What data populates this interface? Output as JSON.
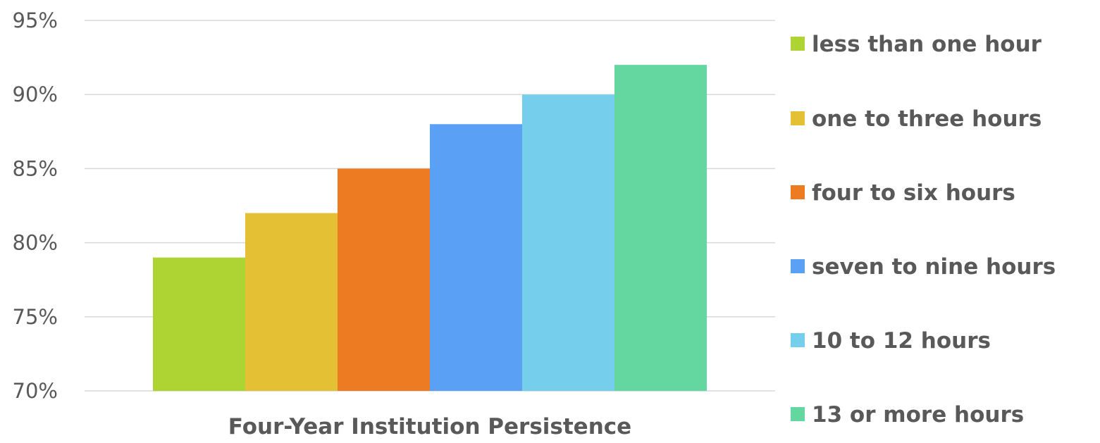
{
  "chart_data": {
    "type": "bar",
    "categories": [
      "Four-Year Institution Persistence"
    ],
    "series": [
      {
        "name": "less than one hour",
        "values": [
          79
        ],
        "color": "#add433"
      },
      {
        "name": "one to three hours",
        "values": [
          82
        ],
        "color": "#e4c034"
      },
      {
        "name": "four to six hours",
        "values": [
          85
        ],
        "color": "#ed7b22"
      },
      {
        "name": "seven to nine hours",
        "values": [
          88
        ],
        "color": "#5aa1f5"
      },
      {
        "name": "10 to 12 hours",
        "values": [
          90
        ],
        "color": "#74ceec"
      },
      {
        "name": "13 or more hours",
        "values": [
          92
        ],
        "color": "#64d6a0"
      }
    ],
    "ylim": [
      70,
      95
    ],
    "yticks": [
      70,
      75,
      80,
      85,
      90,
      95
    ],
    "ytick_labels": [
      "70%",
      "75%",
      "80%",
      "85%",
      "90%",
      "95%"
    ],
    "grid": true,
    "legend_position": "right"
  }
}
